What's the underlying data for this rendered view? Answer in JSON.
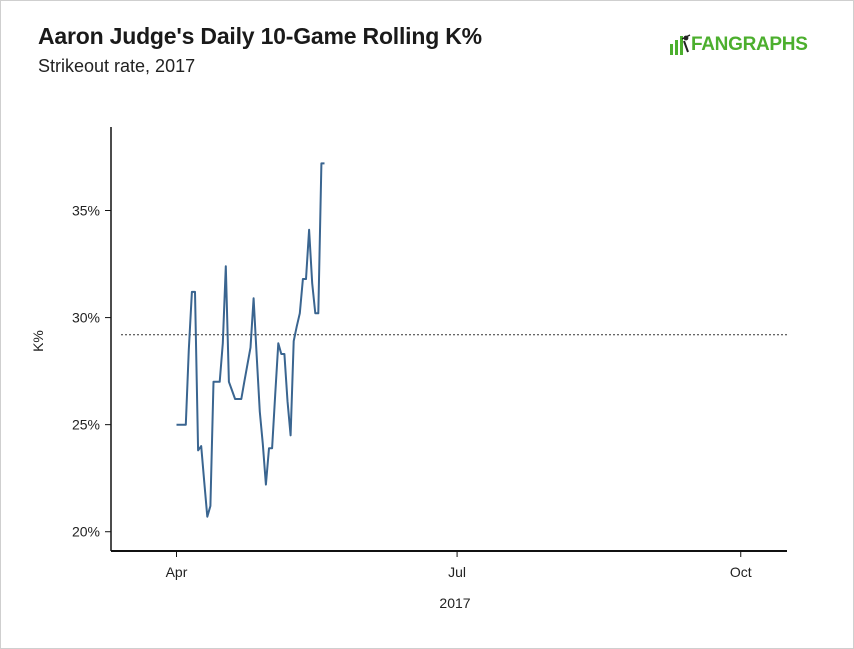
{
  "header": {
    "title": "Aaron Judge's Daily 10-Game Rolling K%",
    "subtitle": "Strikeout rate, 2017",
    "logo_text": "FANGRAPHS",
    "logo_color": "#4caf2e"
  },
  "chart_data": {
    "type": "line",
    "title": "Aaron Judge's Daily 10-Game Rolling K%",
    "subtitle": "Strikeout rate, 2017",
    "xlabel": "2017",
    "ylabel": "K%",
    "x_ticks": [
      {
        "date": "2017-04-01",
        "label": "Apr"
      },
      {
        "date": "2017-07-01",
        "label": "Jul"
      },
      {
        "date": "2017-10-01",
        "label": "Oct"
      }
    ],
    "y_ticks": [
      {
        "value": 20,
        "label": "20%"
      },
      {
        "value": 25,
        "label": "25%"
      },
      {
        "value": 30,
        "label": "30%"
      },
      {
        "value": 35,
        "label": "35%"
      }
    ],
    "xlim": [
      "2017-03-14",
      "2017-10-16"
    ],
    "ylim": [
      19.1,
      38.9
    ],
    "line_color": "#3a6590",
    "reference_line": {
      "value": 29.2,
      "style": "dotted",
      "color": "#333333"
    },
    "grid": false,
    "series": [
      {
        "x": [
          "2017-04-01",
          "2017-04-02",
          "2017-04-03",
          "2017-04-04",
          "2017-04-05",
          "2017-04-06",
          "2017-04-07",
          "2017-04-08",
          "2017-04-09",
          "2017-04-10",
          "2017-04-11",
          "2017-04-12",
          "2017-04-13",
          "2017-04-14",
          "2017-04-15",
          "2017-04-16",
          "2017-04-17",
          "2017-04-18",
          "2017-04-19",
          "2017-04-20",
          "2017-04-21",
          "2017-04-22",
          "2017-04-23",
          "2017-04-24",
          "2017-04-25",
          "2017-04-26",
          "2017-04-27",
          "2017-04-28",
          "2017-04-29",
          "2017-04-30",
          "2017-05-01",
          "2017-05-02",
          "2017-05-03",
          "2017-05-04",
          "2017-05-05",
          "2017-05-06",
          "2017-05-07",
          "2017-05-08",
          "2017-05-09",
          "2017-05-10",
          "2017-05-11",
          "2017-05-12",
          "2017-05-13",
          "2017-05-14",
          "2017-05-15",
          "2017-05-16"
        ],
        "values": [
          25.0,
          25.0,
          25.0,
          25.0,
          28.5,
          31.2,
          31.2,
          23.8,
          24.0,
          22.3,
          20.7,
          21.2,
          27.0,
          27.0,
          27.0,
          28.8,
          32.4,
          27.0,
          26.6,
          26.2,
          26.2,
          26.2,
          27.0,
          27.8,
          28.6,
          30.9,
          28.2,
          25.6,
          24.1,
          22.2,
          23.9,
          23.9,
          26.4,
          28.8,
          28.3,
          28.3,
          26.1,
          24.5,
          28.9,
          29.6,
          30.2,
          31.8,
          31.8,
          34.1,
          31.6,
          30.2
        ],
        "note_last": "30.2"
      }
    ],
    "tail": {
      "x": [
        "2017-05-17",
        "2017-05-18",
        "2017-05-19"
      ],
      "values": [
        30.2,
        37.2,
        37.2
      ]
    }
  }
}
